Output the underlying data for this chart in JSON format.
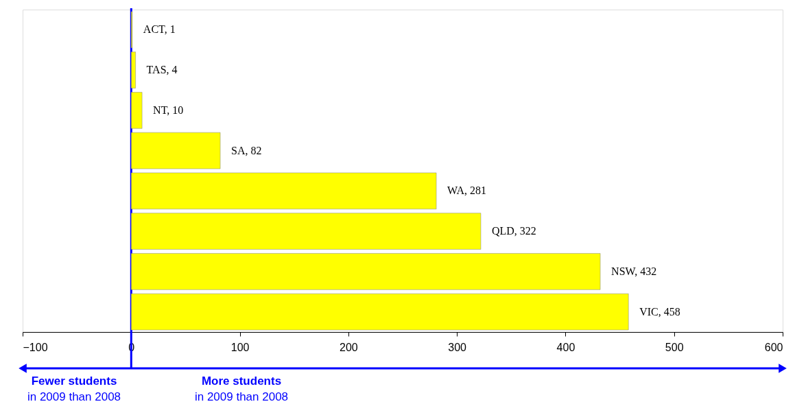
{
  "chart_data": {
    "type": "bar",
    "orientation": "horizontal",
    "categories": [
      null,
      null,
      null,
      null,
      null,
      null,
      null,
      null
    ],
    "values": [
      1,
      4,
      10,
      82,
      281,
      322,
      432,
      458
    ],
    "value_labels": [
      "ACT, 1",
      "TAS, 4",
      "NT, 10",
      "SA, 82",
      "WA, 281",
      "QLD, 322",
      "NSW, 432",
      "VIC, 458"
    ],
    "color": "#ffff00",
    "xlim": [
      -100,
      600
    ],
    "xticks": [
      -100,
      0,
      100,
      200,
      300,
      400,
      500,
      600
    ],
    "tick_labels": "x",
    "grid": false,
    "ref_lines": [
      {
        "axis": "x",
        "value": 0,
        "color": "#0000ff"
      }
    ],
    "annotations": [
      "Fewer students",
      "in 2009 than 2008",
      "More students",
      "in 2009 than 2008"
    ]
  }
}
